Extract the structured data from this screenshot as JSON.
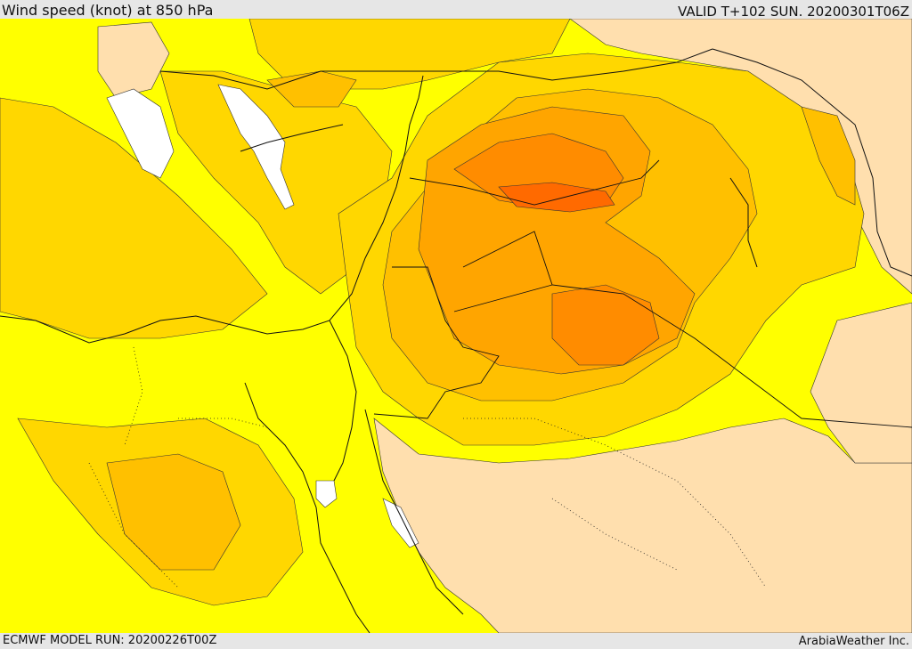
{
  "header": {
    "title": "Wind speed (knot) at 850 hPa",
    "valid": "VALID T+102 SUN. 20200301T06Z"
  },
  "footer": {
    "model_run": "ECMWF MODEL RUN: 20200226T00Z",
    "credit": "ArabiaWeather Inc."
  },
  "palette": {
    "calm": "#ffffff",
    "low": "#ffdfae",
    "base": "#ffff00",
    "light": "#ffd700",
    "mid": "#ffc000",
    "strong": "#ffa500",
    "stronger": "#ff8c00",
    "strongest": "#ff6a00"
  }
}
